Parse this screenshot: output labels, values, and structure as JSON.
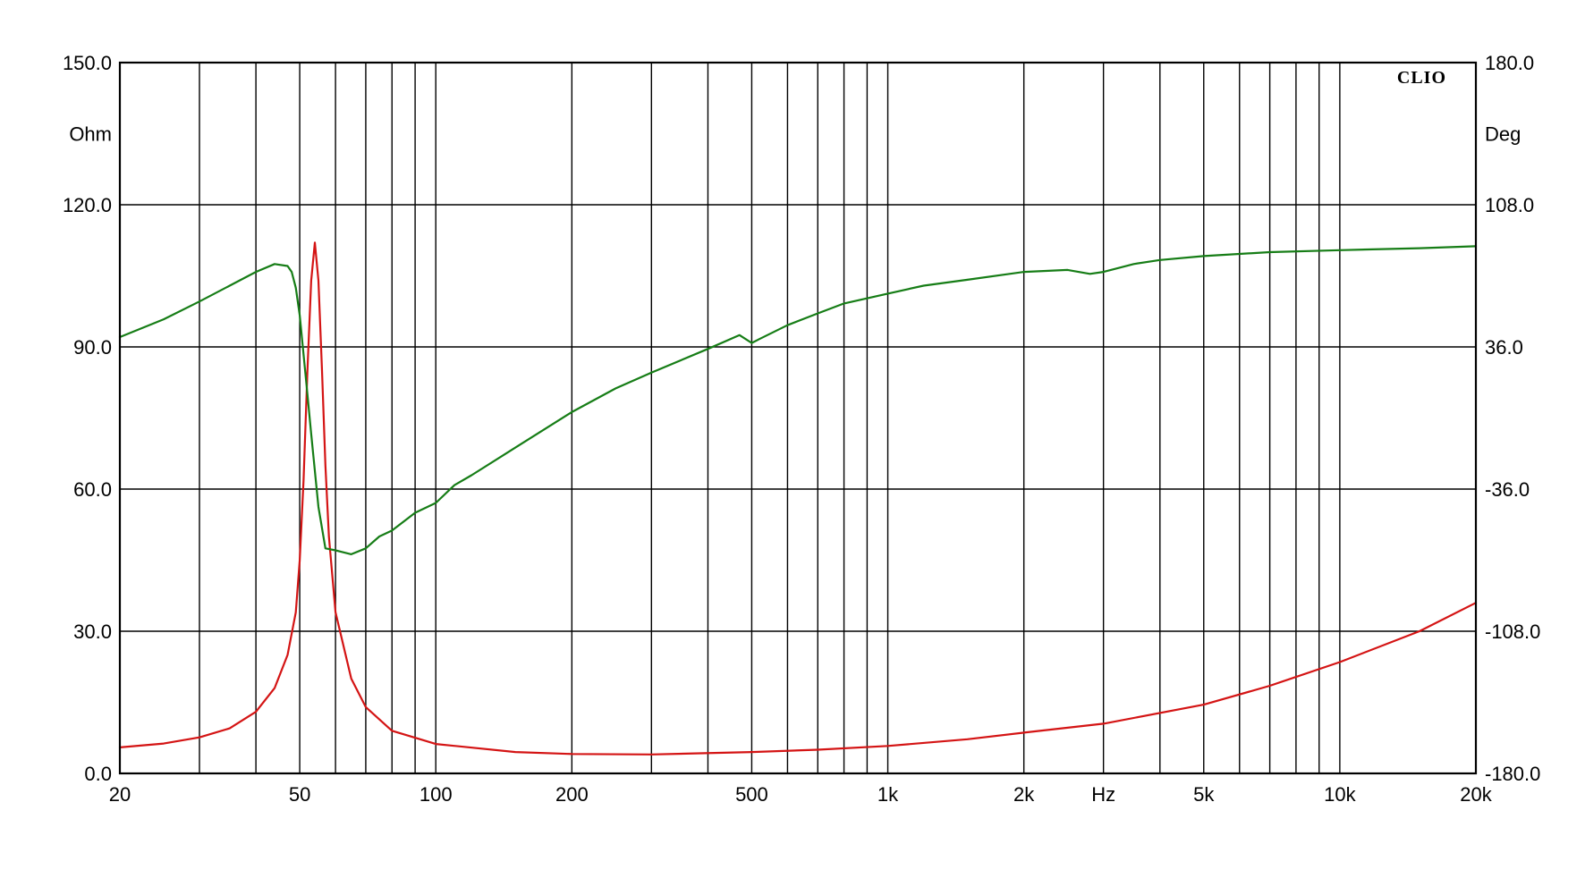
{
  "chart_data": {
    "type": "line",
    "brand": "CLIO",
    "xscale": "log",
    "xlim": [
      20,
      20000
    ],
    "x_unit": "Hz",
    "x_tick_labels": [
      {
        "value": 20,
        "label": "20"
      },
      {
        "value": 50,
        "label": "50"
      },
      {
        "value": 100,
        "label": "100"
      },
      {
        "value": 200,
        "label": "200"
      },
      {
        "value": 500,
        "label": "500"
      },
      {
        "value": 1000,
        "label": "1k"
      },
      {
        "value": 2000,
        "label": "2k"
      },
      {
        "value": 5000,
        "label": "5k"
      },
      {
        "value": 10000,
        "label": "10k"
      },
      {
        "value": 20000,
        "label": "20k"
      }
    ],
    "x_unit_position_value": 3000,
    "x_gridlines": [
      20,
      30,
      40,
      50,
      60,
      70,
      80,
      90,
      100,
      200,
      300,
      400,
      500,
      600,
      700,
      800,
      900,
      1000,
      2000,
      3000,
      4000,
      5000,
      6000,
      7000,
      8000,
      9000,
      10000,
      20000
    ],
    "y_left": {
      "unit": "Ohm",
      "range": [
        0,
        150
      ],
      "ticks": [
        "0.0",
        "30.0",
        "60.0",
        "90.0",
        "120.0",
        "150.0"
      ]
    },
    "y_right": {
      "unit": "Deg",
      "range": [
        -180,
        180
      ],
      "ticks": [
        "-180.0",
        "-108.0",
        "-36.0",
        "36.0",
        "108.0",
        "180.0"
      ]
    },
    "grid": true,
    "series": [
      {
        "color": "#d41414",
        "axis": "left",
        "x": [
          20,
          25,
          30,
          35,
          40,
          44,
          47,
          49,
          50,
          51,
          52,
          53,
          54,
          55,
          56,
          57,
          58,
          60,
          65,
          70,
          80,
          100,
          150,
          200,
          300,
          500,
          700,
          1000,
          1500,
          2000,
          3000,
          5000,
          7000,
          10000,
          15000,
          20000
        ],
        "values": [
          5.5,
          6.3,
          7.6,
          9.5,
          13,
          18,
          25,
          34,
          45,
          62,
          85,
          104,
          112,
          104,
          85,
          65,
          50,
          34,
          20,
          14,
          9,
          6.2,
          4.5,
          4.1,
          4,
          4.5,
          5,
          5.8,
          7.2,
          8.6,
          10.5,
          14.5,
          18.5,
          23.5,
          30,
          36
        ]
      },
      {
        "color": "#167d16",
        "axis": "right",
        "x": [
          20,
          25,
          30,
          35,
          40,
          44,
          47,
          48,
          49,
          50,
          51,
          52,
          53,
          55,
          57,
          60,
          65,
          70,
          75,
          80,
          90,
          100,
          110,
          120,
          150,
          200,
          250,
          300,
          400,
          470,
          500,
          520,
          600,
          700,
          800,
          1000,
          1200,
          1500,
          2000,
          2500,
          2800,
          3000,
          3500,
          4000,
          5000,
          7000,
          10000,
          15000,
          20000
        ],
        "values": [
          41,
          50,
          59,
          67,
          74,
          78,
          77,
          74,
          66,
          52,
          32,
          12,
          -8,
          -45,
          -66,
          -67,
          -69,
          -66,
          -60,
          -57,
          -48,
          -43,
          -34,
          -29,
          -15,
          3,
          15,
          23,
          35,
          42,
          38,
          40,
          47,
          53,
          58,
          63,
          67,
          70,
          74,
          75,
          73,
          74,
          78,
          80,
          82,
          84,
          85,
          86,
          87
        ]
      }
    ]
  }
}
